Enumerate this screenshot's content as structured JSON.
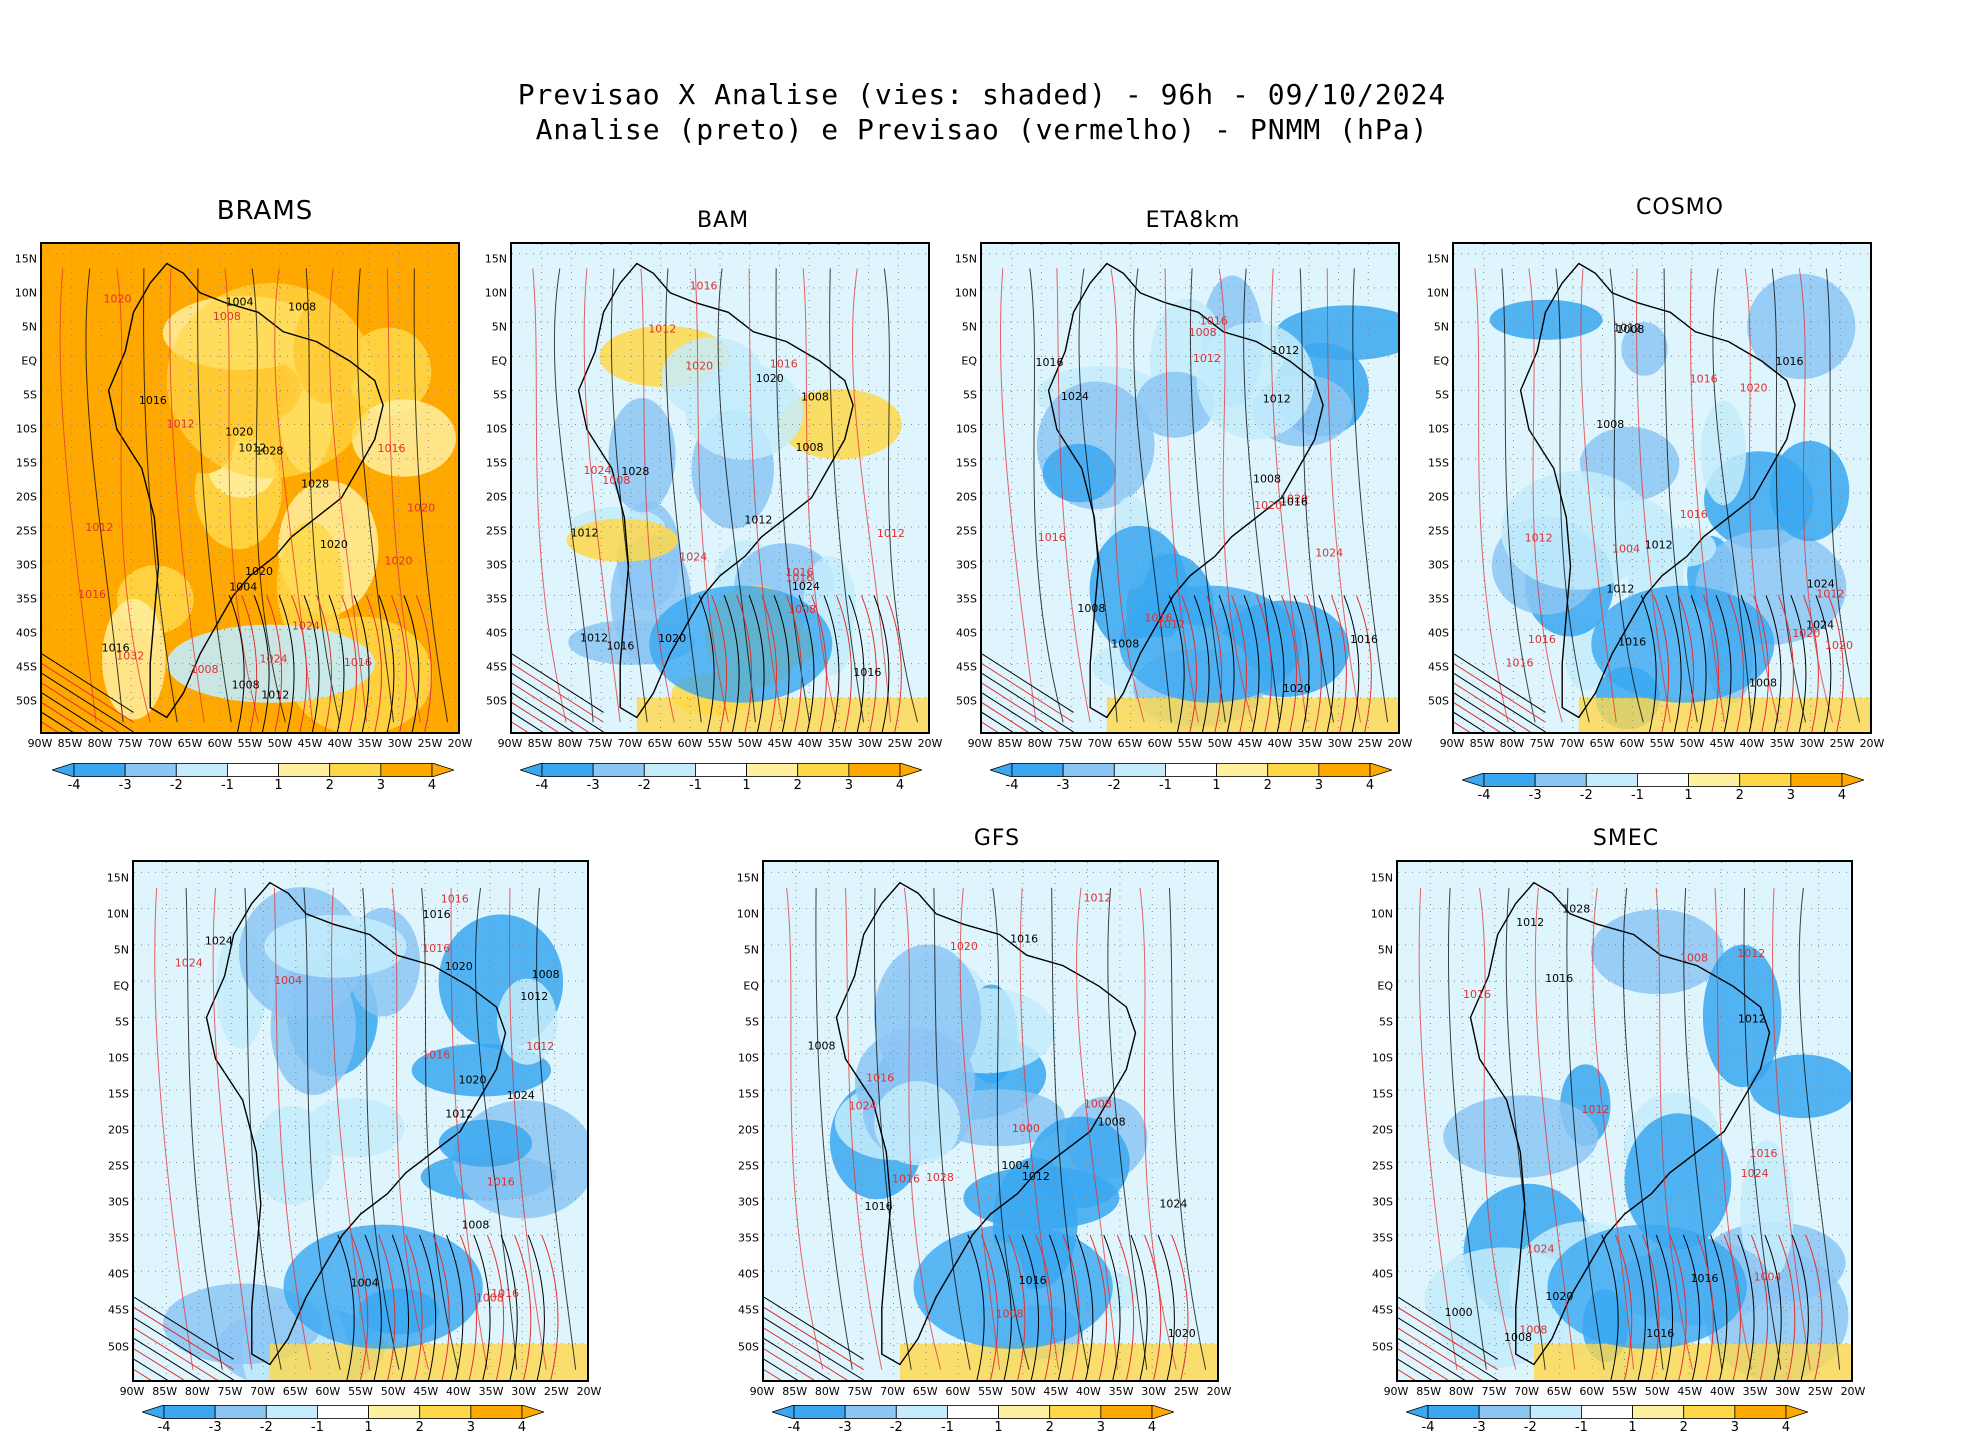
{
  "figure": {
    "title_line1": "Previsao X Analise (vies: shaded) - 96h - 09/10/2024",
    "title_line2": "Analise (preto) e Previsao (vermelho) - PNMM (hPa)"
  },
  "colors": {
    "neg4": "#3aa7f0",
    "neg3": "#8cc6f4",
    "neg2": "#c4ecfc",
    "neutral": "#ffffff",
    "pos2": "#fff0a0",
    "pos3": "#ffd84a",
    "pos4": "#ffa800",
    "analysis": "#000000",
    "forecast": "#e03030"
  },
  "axes": {
    "lat_labels": [
      "15N",
      "10N",
      "5N",
      "EQ",
      "5S",
      "10S",
      "15S",
      "20S",
      "25S",
      "30S",
      "35S",
      "40S",
      "45S",
      "50S"
    ],
    "lon_labels": [
      "90W",
      "85W",
      "80W",
      "75W",
      "70W",
      "65W",
      "60W",
      "55W",
      "50W",
      "45W",
      "40W",
      "35W",
      "30W",
      "25W",
      "20W"
    ]
  },
  "colorbar": {
    "labels": [
      "-4",
      "-3",
      "-2",
      "-1",
      "1",
      "2",
      "3",
      "4"
    ]
  },
  "panels": [
    {
      "id": "brams",
      "title": "BRAMS",
      "bias": "warm",
      "contours": [
        "1008",
        "1008",
        "1012",
        "1016",
        "1004",
        "1008",
        "1020",
        "1012",
        "1016",
        "1020",
        "1016",
        "1012",
        "1020",
        "1024",
        "1028",
        "1032",
        "1028",
        "1020",
        "1008",
        "1016",
        "1020",
        "1016",
        "1012",
        "1024",
        "1004",
        "1020"
      ]
    },
    {
      "id": "bam",
      "title": "BAM",
      "bias": "mixed",
      "contours": [
        "1016",
        "1012",
        "1012",
        "1008",
        "1012",
        "1016",
        "1008",
        "1008",
        "1016",
        "1012",
        "1012",
        "1016",
        "1008",
        "1016",
        "1020",
        "1020",
        "1024",
        "1024",
        "1020",
        "1024",
        "1028",
        "1016"
      ]
    },
    {
      "id": "eta8km",
      "title": "ETA8km",
      "bias": "cold",
      "contours": [
        "1008",
        "1016",
        "1012",
        "1012",
        "1008",
        "1008",
        "1012",
        "1016",
        "1008",
        "1012",
        "1016",
        "1016",
        "1016",
        "1020",
        "1024",
        "1020",
        "1020",
        "1024",
        "1016"
      ]
    },
    {
      "id": "cosmo",
      "title": "COSMO",
      "bias": "cold",
      "contours": [
        "1012",
        "1012",
        "1012",
        "1016",
        "1008",
        "1016",
        "1008",
        "1012",
        "1016",
        "1020",
        "1008",
        "1016",
        "1012",
        "1020",
        "1024",
        "1020",
        "1016",
        "1004",
        "1024",
        "1016"
      ]
    },
    {
      "id": "unnamed",
      "title": "",
      "bias": "cold",
      "contours": [
        "1012",
        "1016",
        "1008",
        "1008",
        "1012",
        "1016",
        "1008",
        "1016",
        "1004",
        "1012",
        "1020",
        "1016",
        "1016",
        "1024",
        "1020",
        "1004",
        "1024",
        "1016",
        "1024"
      ]
    },
    {
      "id": "gfs",
      "title": "GFS",
      "bias": "cold",
      "contours": [
        "1008",
        "1016",
        "1012",
        "1008",
        "1016",
        "1008",
        "1008",
        "1012",
        "1016",
        "1016",
        "1016",
        "1020",
        "1020",
        "1024",
        "1004",
        "1000",
        "1024",
        "1028"
      ]
    },
    {
      "id": "smec",
      "title": "SMEC",
      "bias": "cold",
      "contours": [
        "1016",
        "1012",
        "1012",
        "1008",
        "1008",
        "1016",
        "1012",
        "1008",
        "1016",
        "1012",
        "1016",
        "1016",
        "1020",
        "1024",
        "1028",
        "1004",
        "1000",
        "1024"
      ]
    }
  ]
}
